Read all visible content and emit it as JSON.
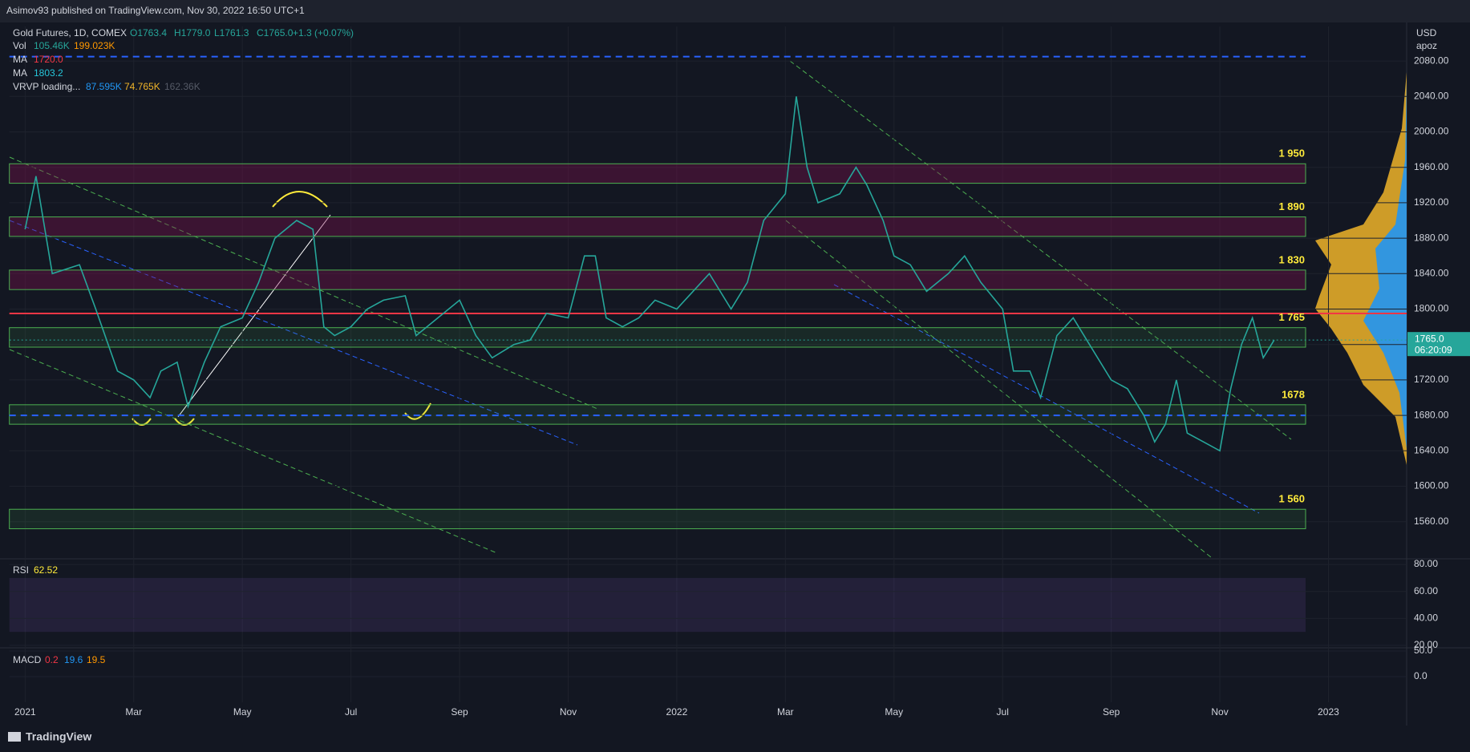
{
  "header": {
    "text": "Asimov93 published on TradingView.com, Nov 30, 2022 16:50 UTC+1"
  },
  "legend": {
    "symbol": "Gold Futures, 1D, COMEX",
    "open": "O1763.4",
    "high": "H1779.0",
    "low": "L1761.3",
    "close": "C1765.0",
    "change": "+1.3 (+0.07%)",
    "vol_label": "Vol",
    "vol1": "105.46K",
    "vol2": "199.023K",
    "ma1_label": "MA",
    "ma1": "1720.0",
    "ma2_label": "MA",
    "ma2": "1803.2",
    "vrvp_label": "VRVP loading...",
    "vrvp1": "87.595K",
    "vrvp2": "74.765K",
    "vrvp3": "162.36K"
  },
  "chart_data": {
    "type": "line",
    "color": "#26a69a",
    "x": [
      0,
      0.2,
      0.5,
      1,
      1.3,
      1.7,
      2,
      2.3,
      2.5,
      2.8,
      3,
      3.3,
      3.6,
      4,
      4.3,
      4.6,
      5,
      5.3,
      5.5,
      5.7,
      6,
      6.3,
      6.6,
      7,
      7.2,
      7.4,
      7.6,
      8,
      8.3,
      8.6,
      9,
      9.3,
      9.6,
      10,
      10.3,
      10.5,
      10.7,
      11,
      11.3,
      11.6,
      12,
      12.3,
      12.6,
      13,
      13.3,
      13.6,
      14,
      14.2,
      14.4,
      14.6,
      15,
      15.3,
      15.5,
      15.8,
      16,
      16.3,
      16.6,
      17,
      17.3,
      17.6,
      18,
      18.2,
      18.5,
      18.7,
      19,
      19.3,
      19.6,
      20,
      20.3,
      20.6,
      20.8,
      21,
      21.2,
      21.4,
      21.7,
      22,
      22.2,
      22.4,
      22.6,
      22.8,
      23
    ],
    "values": [
      1890,
      1950,
      1840,
      1850,
      1800,
      1730,
      1720,
      1700,
      1730,
      1740,
      1690,
      1740,
      1780,
      1790,
      1830,
      1880,
      1900,
      1890,
      1780,
      1770,
      1780,
      1800,
      1810,
      1815,
      1770,
      1780,
      1790,
      1810,
      1770,
      1745,
      1760,
      1765,
      1795,
      1790,
      1860,
      1860,
      1790,
      1780,
      1790,
      1810,
      1800,
      1820,
      1840,
      1800,
      1830,
      1900,
      1930,
      2040,
      1960,
      1920,
      1930,
      1960,
      1940,
      1900,
      1860,
      1850,
      1820,
      1840,
      1860,
      1830,
      1800,
      1730,
      1730,
      1700,
      1770,
      1790,
      1760,
      1720,
      1710,
      1680,
      1650,
      1670,
      1720,
      1660,
      1650,
      1640,
      1710,
      1760,
      1790,
      1745,
      1765
    ],
    "xlim": [
      -0.29,
      25.44
    ],
    "xticks": [
      {
        "value": 0,
        "label": "2021"
      },
      {
        "value": 2,
        "label": "Mar"
      },
      {
        "value": 4,
        "label": "May"
      },
      {
        "value": 6,
        "label": "Jul"
      },
      {
        "value": 8,
        "label": "Sep"
      },
      {
        "value": 10,
        "label": "Nov"
      },
      {
        "value": 12,
        "label": "2022"
      },
      {
        "value": 14,
        "label": "Mar"
      },
      {
        "value": 16,
        "label": "May"
      },
      {
        "value": 18,
        "label": "Jul"
      },
      {
        "value": 20,
        "label": "Sep"
      },
      {
        "value": 22,
        "label": "Nov"
      },
      {
        "value": 24,
        "label": "2023"
      }
    ],
    "ylim": [
      1519,
      2119
    ],
    "yticks": [
      {
        "value": 1560,
        "label": "1560.00"
      },
      {
        "value": 1600,
        "label": "1600.00"
      },
      {
        "value": 1640,
        "label": "1640.00"
      },
      {
        "value": 1680,
        "label": "1680.00"
      },
      {
        "value": 1720,
        "label": "1720.00"
      },
      {
        "value": 1760,
        "label": "1760.00"
      },
      {
        "value": 1800,
        "label": "1800.00"
      },
      {
        "value": 1840,
        "label": "1840.00"
      },
      {
        "value": 1880,
        "label": "1880.00"
      },
      {
        "value": 1920,
        "label": "1920.00"
      },
      {
        "value": 1960,
        "label": "1960.00"
      },
      {
        "value": 2000,
        "label": "2000.00"
      },
      {
        "value": 2040,
        "label": "2040.00"
      },
      {
        "value": 2080,
        "label": "2080.00"
      }
    ],
    "levels": [
      {
        "value": 1950,
        "label": "1 950"
      },
      {
        "value": 1890,
        "label": "1 890"
      },
      {
        "value": 1830,
        "label": "1 830"
      },
      {
        "value": 1765,
        "label": "1 765"
      },
      {
        "value": 1678,
        "label": "1678"
      },
      {
        "value": 1560,
        "label": "1 560"
      }
    ],
    "lines": [
      {
        "value": 1795,
        "color": "#f23645",
        "dash": false
      },
      {
        "value": 2085,
        "color": "#2962ff",
        "dash": true
      },
      {
        "value": 1680,
        "color": "#2962ff",
        "dash": true
      }
    ],
    "last_price": {
      "value": 1765,
      "label": "1765.0",
      "countdown": "06:20:09"
    },
    "currency": "USD",
    "unit": "apoz"
  },
  "rsi": {
    "label": "RSI",
    "value": "62.52",
    "ylim": [
      18.8,
      84.2
    ],
    "yticks": [
      {
        "value": 80,
        "label": "80.00"
      },
      {
        "value": 60,
        "label": "60.00"
      },
      {
        "value": 40,
        "label": "40.00"
      },
      {
        "value": 20,
        "label": "20.00"
      }
    ]
  },
  "macd": {
    "label": "MACD",
    "v1": "0.2",
    "v2": "19.6",
    "v3": "19.5",
    "ylim": [
      -50,
      56.25
    ],
    "yticks": [
      {
        "value": 50,
        "label": "50.0"
      },
      {
        "value": 0,
        "label": "0.0"
      }
    ]
  },
  "footer": {
    "brand": "TradingView"
  }
}
